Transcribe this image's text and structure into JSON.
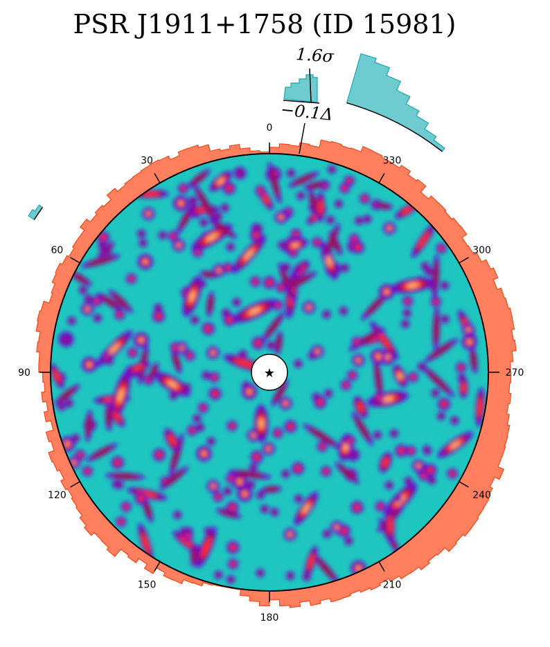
{
  "chart_data": {
    "type": "heatmap",
    "title": "PSR J1911+1758 (ID 15981)",
    "projection": "polar",
    "center_marker": "★",
    "angle_ticks": [
      0,
      30,
      60,
      90,
      120,
      150,
      180,
      210,
      240,
      270,
      300,
      330
    ],
    "angle_tick_labels": [
      "0",
      "30",
      "60",
      "90",
      "120",
      "150",
      "180",
      "210",
      "240",
      "270",
      "300",
      "330"
    ],
    "angle_direction": "counterclockwise from top",
    "annotations": {
      "significance": "1.6σ",
      "offset": "−0.1Δ"
    },
    "colors": {
      "background_field": "#1fc6c0",
      "blob_low": "#6a0fd0",
      "blob_mid": "#a0103a",
      "blob_high": "#ff2a10",
      "blob_peak": "#ffb070",
      "outer_histogram_fill": "#ff7f5e",
      "outer_histogram_edge": "#f04a18",
      "inner_histogram_fill": "#6ecbd0",
      "inner_histogram_edge": "#1aa8b0"
    }
  }
}
